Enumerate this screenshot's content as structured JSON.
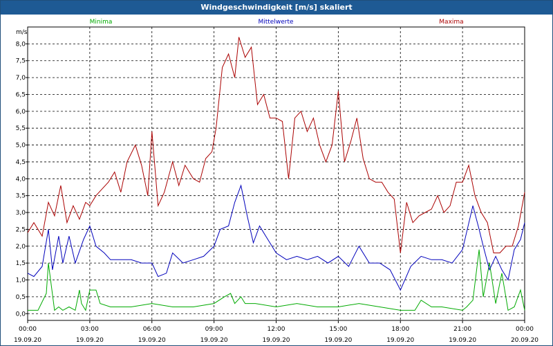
{
  "window": {
    "title": "Windgeschwindigkeit [m/s] skaliert"
  },
  "colors": {
    "minima": "#00aa00",
    "mittelwerte": "#0000bb",
    "maxima": "#aa0000",
    "titlebar": "#1e5a94"
  },
  "chart_data": {
    "type": "line",
    "title": "Windgeschwindigkeit [m/s] skaliert",
    "ylabel": "m/s",
    "ylim": [
      -0.2,
      8.5
    ],
    "yticks": [
      "0,0",
      "0,5",
      "1,0",
      "1,5",
      "2,0",
      "2,5",
      "3,0",
      "3,5",
      "4,0",
      "4,5",
      "5,0",
      "5,5",
      "6,0",
      "6,5",
      "7,0",
      "7,5",
      "8,0"
    ],
    "xticks": [
      {
        "time": "00:00",
        "date": "19.09.20"
      },
      {
        "time": "03:00",
        "date": "19.09.20"
      },
      {
        "time": "06:00",
        "date": "19.09.20"
      },
      {
        "time": "09:00",
        "date": "19.09.20"
      },
      {
        "time": "12:00",
        "date": "19.09.20"
      },
      {
        "time": "15:00",
        "date": "19.09.20"
      },
      {
        "time": "18:00",
        "date": "19.09.20"
      },
      {
        "time": "21:00",
        "date": "19.09.20"
      },
      {
        "time": "00:00",
        "date": "20.09.20"
      }
    ],
    "x_hours_range": [
      0,
      24
    ],
    "grid": true,
    "legend_placement": "top",
    "series": [
      {
        "name": "Minima",
        "hours": [
          0,
          0.5,
          0.9,
          1.0,
          1.3,
          1.5,
          1.7,
          2.0,
          2.3,
          2.5,
          2.6,
          2.8,
          3.0,
          3.3,
          3.5,
          4,
          5,
          6,
          7,
          8,
          9,
          9.5,
          9.8,
          10.0,
          10.3,
          10.5,
          11,
          12,
          13,
          14,
          15,
          16,
          17,
          18.0,
          18.7,
          19,
          19.5,
          20,
          21,
          21.2,
          21.5,
          21.8,
          22,
          22.3,
          22.6,
          22.9,
          23.2,
          23.5,
          23.8,
          24
        ],
        "values": [
          0.1,
          0.1,
          0.6,
          1.5,
          0.1,
          0.2,
          0.1,
          0.2,
          0.1,
          0.7,
          0.3,
          0.1,
          0.7,
          0.7,
          0.3,
          0.2,
          0.2,
          0.3,
          0.2,
          0.2,
          0.3,
          0.5,
          0.6,
          0.3,
          0.5,
          0.3,
          0.3,
          0.2,
          0.3,
          0.2,
          0.2,
          0.3,
          0.2,
          0.1,
          0.1,
          0.4,
          0.2,
          0.2,
          0.1,
          0.2,
          0.4,
          1.9,
          0.5,
          1.5,
          0.3,
          1.2,
          0.1,
          0.2,
          0.7,
          0.1
        ]
      },
      {
        "name": "Mittelwerte",
        "hours": [
          0,
          0.3,
          0.7,
          1.0,
          1.2,
          1.5,
          1.7,
          2.0,
          2.3,
          2.7,
          3.0,
          3.3,
          3.7,
          4.0,
          4.5,
          5.0,
          5.5,
          6.0,
          6.3,
          6.7,
          7.0,
          7.5,
          8.0,
          8.5,
          9.0,
          9.3,
          9.7,
          10.0,
          10.3,
          10.6,
          10.9,
          11.2,
          11.5,
          12.0,
          12.5,
          13.0,
          13.5,
          14.0,
          14.5,
          15.0,
          15.5,
          16.0,
          16.5,
          17.0,
          17.5,
          18.0,
          18.5,
          19.0,
          19.5,
          20.0,
          20.5,
          21.0,
          21.5,
          21.8,
          22.0,
          22.3,
          22.6,
          22.9,
          23.2,
          23.5,
          23.8,
          24.0
        ],
        "values": [
          1.2,
          1.1,
          1.4,
          2.5,
          1.3,
          2.3,
          1.5,
          2.3,
          1.5,
          2.2,
          2.6,
          2.0,
          1.8,
          1.6,
          1.6,
          1.6,
          1.5,
          1.5,
          1.1,
          1.2,
          1.8,
          1.5,
          1.6,
          1.7,
          2.0,
          2.5,
          2.6,
          3.3,
          3.8,
          2.9,
          2.1,
          2.6,
          2.3,
          1.8,
          1.6,
          1.7,
          1.6,
          1.7,
          1.5,
          1.7,
          1.4,
          2.0,
          1.5,
          1.5,
          1.3,
          0.7,
          1.4,
          1.7,
          1.6,
          1.6,
          1.5,
          1.9,
          3.2,
          2.5,
          2.0,
          1.3,
          1.7,
          1.3,
          1.0,
          1.9,
          2.2,
          2.7
        ]
      },
      {
        "name": "Maxima",
        "hours": [
          0,
          0.3,
          0.7,
          1.0,
          1.3,
          1.6,
          1.9,
          2.2,
          2.5,
          2.8,
          3.0,
          3.3,
          3.6,
          3.9,
          4.2,
          4.5,
          4.8,
          5.2,
          5.5,
          5.8,
          6.0,
          6.3,
          6.6,
          7.0,
          7.3,
          7.6,
          8.0,
          8.3,
          8.6,
          8.9,
          9.1,
          9.4,
          9.7,
          10.0,
          10.2,
          10.5,
          10.8,
          11.1,
          11.4,
          11.7,
          12.0,
          12.3,
          12.6,
          12.9,
          13.2,
          13.5,
          13.8,
          14.1,
          14.4,
          14.7,
          15.0,
          15.3,
          15.6,
          15.9,
          16.2,
          16.5,
          16.8,
          17.1,
          17.4,
          17.7,
          18.0,
          18.3,
          18.6,
          18.9,
          19.2,
          19.5,
          19.8,
          20.1,
          20.4,
          20.7,
          21.0,
          21.3,
          21.6,
          21.9,
          22.2,
          22.5,
          22.8,
          23.1,
          23.4,
          23.7,
          24.0
        ],
        "values": [
          2.4,
          2.7,
          2.3,
          3.3,
          2.9,
          3.8,
          2.7,
          3.2,
          2.8,
          3.3,
          3.2,
          3.5,
          3.7,
          3.9,
          4.2,
          3.6,
          4.5,
          5.0,
          4.4,
          3.5,
          5.4,
          3.2,
          3.6,
          4.5,
          3.8,
          4.4,
          4.0,
          3.9,
          4.6,
          4.8,
          5.5,
          7.3,
          7.7,
          7.0,
          8.2,
          7.6,
          7.9,
          6.2,
          6.5,
          5.8,
          5.8,
          5.7,
          4.0,
          5.8,
          6.0,
          5.4,
          5.8,
          5.0,
          4.5,
          5.0,
          6.6,
          4.5,
          5.1,
          5.8,
          4.6,
          4.0,
          3.9,
          3.9,
          3.6,
          3.4,
          1.8,
          3.3,
          2.7,
          2.9,
          3.0,
          3.1,
          3.5,
          3.0,
          3.2,
          3.9,
          3.9,
          4.4,
          3.5,
          3.0,
          2.7,
          1.8,
          1.8,
          2.0,
          2.0,
          2.6,
          3.6
        ]
      }
    ]
  }
}
